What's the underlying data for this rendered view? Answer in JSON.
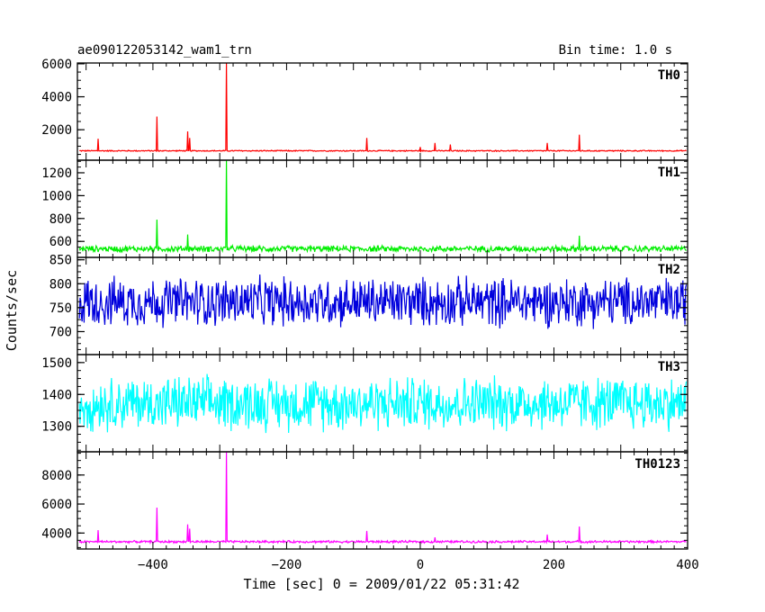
{
  "chart_data": {
    "type": "line",
    "title": "ae090122053142_wam1_trn",
    "bin_time_label": "Bin time: 1.0 s",
    "xlabel": "Time [sec] 0 = 2009/01/22 05:31:42",
    "ylabel": "Counts/sec",
    "xlim": [
      -513,
      400
    ],
    "x_ticks": [
      -400,
      -200,
      0,
      200,
      400
    ],
    "x_tick_labels": [
      "−400",
      "−200",
      "0",
      "200",
      "400"
    ],
    "panels": [
      {
        "name": "TH0",
        "color": "#ff0000",
        "ylim": [
          150,
          6050
        ],
        "y_ticks": [
          2000,
          4000,
          6000
        ],
        "y_tick_labels": [
          "2000",
          "4000",
          "6000"
        ],
        "baseline": 720,
        "noise": 60,
        "spikes": [
          {
            "x": -482,
            "y": 1450
          },
          {
            "x": -394,
            "y": 2800
          },
          {
            "x": -348,
            "y": 1900
          },
          {
            "x": -345,
            "y": 1500
          },
          {
            "x": -290,
            "y": 6050
          },
          {
            "x": -80,
            "y": 1500
          },
          {
            "x": 0,
            "y": 950
          },
          {
            "x": 22,
            "y": 1200
          },
          {
            "x": 45,
            "y": 1100
          },
          {
            "x": 190,
            "y": 1200
          },
          {
            "x": 238,
            "y": 1700
          }
        ]
      },
      {
        "name": "TH1",
        "color": "#00ee00",
        "ylim": [
          460,
          1310
        ],
        "y_ticks": [
          600,
          800,
          1000,
          1200
        ],
        "y_tick_labels": [
          "600",
          "800",
          "1000",
          "1200"
        ],
        "baseline": 535,
        "noise": 45,
        "spikes": [
          {
            "x": -394,
            "y": 790
          },
          {
            "x": -348,
            "y": 660
          },
          {
            "x": -290,
            "y": 1310
          },
          {
            "x": 238,
            "y": 650
          }
        ]
      },
      {
        "name": "TH2",
        "color": "#0000dd",
        "ylim": [
          652,
          855
        ],
        "y_ticks": [
          700,
          750,
          800,
          850
        ],
        "y_tick_labels": [
          "700",
          "750",
          "800",
          "850"
        ],
        "baseline": 762,
        "noise": 85,
        "spikes": []
      },
      {
        "name": "TH3",
        "color": "#00ffff",
        "ylim": [
          1220,
          1525
        ],
        "y_ticks": [
          1300,
          1400,
          1500
        ],
        "y_tick_labels": [
          "1300",
          "1400",
          "1500"
        ],
        "baseline": 1372,
        "noise": 140,
        "spikes": []
      },
      {
        "name": "TH0123",
        "color": "#ff00ff",
        "ylim": [
          2900,
          9600
        ],
        "y_ticks": [
          4000,
          6000,
          8000
        ],
        "y_tick_labels": [
          "4000",
          "6000",
          "8000"
        ],
        "baseline": 3400,
        "noise": 130,
        "spikes": [
          {
            "x": -482,
            "y": 4200
          },
          {
            "x": -394,
            "y": 5750
          },
          {
            "x": -348,
            "y": 4600
          },
          {
            "x": -345,
            "y": 4300
          },
          {
            "x": -290,
            "y": 9600
          },
          {
            "x": -80,
            "y": 4150
          },
          {
            "x": 22,
            "y": 3700
          },
          {
            "x": 190,
            "y": 3900
          },
          {
            "x": 238,
            "y": 4450
          }
        ]
      }
    ]
  }
}
